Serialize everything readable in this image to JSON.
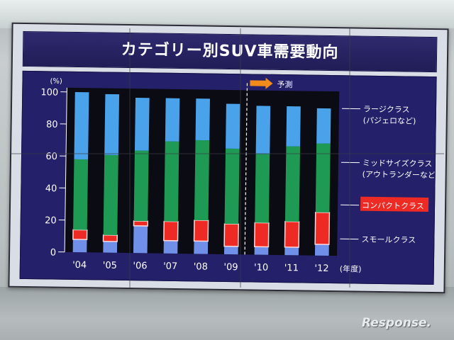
{
  "title": "カテゴリー別SUV車需要動向",
  "watermark": "Response.",
  "chart_data": {
    "type": "bar",
    "stacked": true,
    "categories": [
      "'04",
      "'05",
      "'06",
      "'07",
      "'08",
      "'09",
      "'10",
      "'11",
      "'12"
    ],
    "x_unit": "(年度)",
    "y_unit": "(%)",
    "ylim": [
      0,
      100
    ],
    "yticks": [
      0,
      20,
      40,
      60,
      80,
      100
    ],
    "forecast_label": "予測",
    "forecast_from_index": 6,
    "series": [
      {
        "name": "スモールクラス",
        "color": "#6f8fe8",
        "values": [
          8,
          7,
          17,
          8,
          8,
          5,
          5,
          5,
          7
        ]
      },
      {
        "name": "コンパクトクラス",
        "color": "#ee2a24",
        "values": [
          6,
          4,
          3,
          12,
          13,
          14,
          15,
          16,
          20
        ]
      },
      {
        "name": "ミッドサイズクラス",
        "color": "#1f9a55",
        "values": [
          44,
          50,
          44,
          50,
          50,
          47,
          43,
          47,
          43
        ]
      },
      {
        "name": "ラージクラス",
        "color": "#4aa3ea",
        "values": [
          42,
          38,
          33,
          27,
          26,
          28,
          30,
          25,
          22
        ]
      }
    ],
    "legend": [
      {
        "lines": [
          "ラージクラス",
          "(パジェロなど)"
        ],
        "series": "ラージクラス"
      },
      {
        "lines": [
          "ミッドサイズクラス",
          "(アウトランダーなど)"
        ],
        "series": "ミッドサイズクラス"
      },
      {
        "lines": [
          "コンパクトクラス"
        ],
        "series": "コンパクトクラス",
        "highlight": true
      },
      {
        "lines": [
          "スモールクラス"
        ],
        "series": "スモールクラス"
      }
    ],
    "legend_position": "right",
    "grid": false
  }
}
